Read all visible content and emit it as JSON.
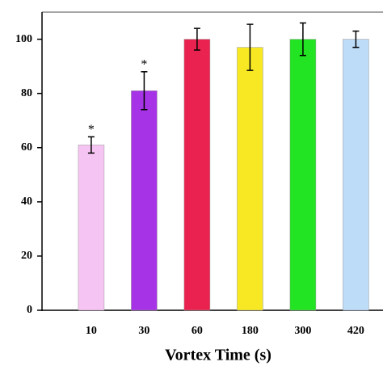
{
  "chart_data": {
    "type": "bar",
    "x_label": "Vortex Time (s)",
    "categories": [
      "10",
      "30",
      "60",
      "180",
      "300",
      "420"
    ],
    "values": [
      61,
      81,
      100,
      97,
      100,
      100
    ],
    "errors": [
      3,
      7,
      4,
      8.5,
      6,
      3
    ],
    "annotations": [
      "*",
      "*",
      null,
      null,
      null,
      null
    ],
    "colors": [
      "#f6c4f2",
      "#a634e6",
      "#ea2250",
      "#f8e824",
      "#22e422",
      "#bcdcf8"
    ],
    "ylim": [
      0,
      110
    ],
    "yticks": [
      0,
      20,
      40,
      60,
      80,
      100
    ]
  }
}
